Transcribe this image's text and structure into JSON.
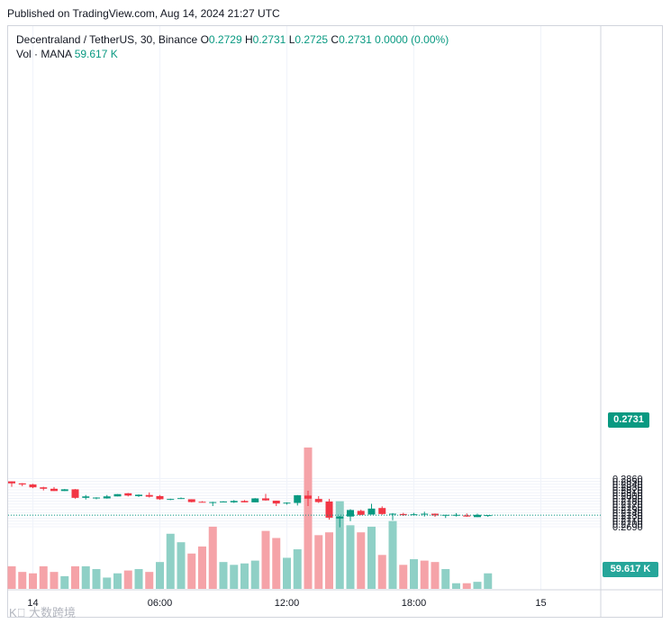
{
  "header": {
    "published": "Published on TradingView.com, Aug 14, 2024 21:27 UTC"
  },
  "legend": {
    "symbol": "Decentraland / TetherUS, 30, Binance",
    "open_label": "O",
    "open": "0.2729",
    "high_label": "H",
    "high": "0.2731",
    "low_label": "L",
    "low": "0.2725",
    "close_label": "C",
    "close": "0.2731",
    "change": "0.0000 (0.00%)",
    "vol_label": "Vol · MANA",
    "vol_value": "59.617 K"
  },
  "price_tag": "0.2731",
  "volume_tag": "59.617 K",
  "watermark": "K⃝ 大数跨境",
  "colors": {
    "up": "#089981",
    "down": "#f23645",
    "up_vol": "#8fd0c6",
    "down_vol": "#f5a3a8",
    "grid": "#f0f3fa",
    "axis_text": "#131722"
  },
  "chart_data": {
    "type": "candlestick",
    "interval": "30",
    "y_ticks": [
      "0.2690",
      "0.2700",
      "0.2710",
      "0.2720",
      "0.2730",
      "0.2740",
      "0.2750",
      "0.2760",
      "0.2770",
      "0.2780",
      "0.2790",
      "0.2800",
      "0.2810",
      "0.2820",
      "0.2830",
      "0.2840",
      "0.2850",
      "0.2860"
    ],
    "ylim": [
      0.268,
      0.2864
    ],
    "x_ticks": [
      {
        "label": "14",
        "index": 2
      },
      {
        "label": "06:00",
        "index": 14
      },
      {
        "label": "12:00",
        "index": 26
      },
      {
        "label": "18:00",
        "index": 38
      },
      {
        "label": "15",
        "index": 50
      }
    ],
    "last_price": 0.2731,
    "candles": [
      {
        "o": 0.285,
        "h": 0.285,
        "l": 0.2831,
        "c": 0.2843
      },
      {
        "o": 0.2843,
        "h": 0.2844,
        "l": 0.2833,
        "c": 0.2839
      },
      {
        "o": 0.2839,
        "h": 0.2841,
        "l": 0.2826,
        "c": 0.2829
      },
      {
        "o": 0.2829,
        "h": 0.2831,
        "l": 0.2818,
        "c": 0.2824
      },
      {
        "o": 0.2824,
        "h": 0.283,
        "l": 0.2816,
        "c": 0.2816
      },
      {
        "o": 0.2816,
        "h": 0.2823,
        "l": 0.2816,
        "c": 0.2822
      },
      {
        "o": 0.2822,
        "h": 0.2823,
        "l": 0.2789,
        "c": 0.2792
      },
      {
        "o": 0.2792,
        "h": 0.2802,
        "l": 0.2786,
        "c": 0.2797
      },
      {
        "o": 0.2791,
        "h": 0.2794,
        "l": 0.2787,
        "c": 0.2793
      },
      {
        "o": 0.279,
        "h": 0.2802,
        "l": 0.2789,
        "c": 0.2797
      },
      {
        "o": 0.2797,
        "h": 0.2805,
        "l": 0.2797,
        "c": 0.2805
      },
      {
        "o": 0.2808,
        "h": 0.2809,
        "l": 0.2797,
        "c": 0.28
      },
      {
        "o": 0.2798,
        "h": 0.2804,
        "l": 0.2795,
        "c": 0.2803
      },
      {
        "o": 0.2802,
        "h": 0.2811,
        "l": 0.2793,
        "c": 0.2796
      },
      {
        "o": 0.2798,
        "h": 0.2802,
        "l": 0.2785,
        "c": 0.2787
      },
      {
        "o": 0.2787,
        "h": 0.2789,
        "l": 0.2784,
        "c": 0.2788
      },
      {
        "o": 0.2788,
        "h": 0.2793,
        "l": 0.2788,
        "c": 0.2791
      },
      {
        "o": 0.2787,
        "h": 0.2787,
        "l": 0.2776,
        "c": 0.2777
      },
      {
        "o": 0.2778,
        "h": 0.278,
        "l": 0.2776,
        "c": 0.2776
      },
      {
        "o": 0.2776,
        "h": 0.2778,
        "l": 0.2763,
        "c": 0.2777
      },
      {
        "o": 0.2776,
        "h": 0.278,
        "l": 0.2776,
        "c": 0.2779
      },
      {
        "o": 0.2776,
        "h": 0.2784,
        "l": 0.2774,
        "c": 0.2781
      },
      {
        "o": 0.2781,
        "h": 0.2784,
        "l": 0.2776,
        "c": 0.2776
      },
      {
        "o": 0.2776,
        "h": 0.2791,
        "l": 0.2776,
        "c": 0.279
      },
      {
        "o": 0.279,
        "h": 0.2806,
        "l": 0.2782,
        "c": 0.2783
      },
      {
        "o": 0.2782,
        "h": 0.2782,
        "l": 0.2763,
        "c": 0.2772
      },
      {
        "o": 0.2772,
        "h": 0.2776,
        "l": 0.2768,
        "c": 0.2775
      },
      {
        "o": 0.2774,
        "h": 0.2802,
        "l": 0.2765,
        "c": 0.2801
      },
      {
        "o": 0.28,
        "h": 0.2817,
        "l": 0.2763,
        "c": 0.2789
      },
      {
        "o": 0.2788,
        "h": 0.2798,
        "l": 0.2774,
        "c": 0.2777
      },
      {
        "o": 0.2779,
        "h": 0.2788,
        "l": 0.2715,
        "c": 0.2722
      },
      {
        "o": 0.2719,
        "h": 0.2728,
        "l": 0.2688,
        "c": 0.2726
      },
      {
        "o": 0.2726,
        "h": 0.2752,
        "l": 0.271,
        "c": 0.2749
      },
      {
        "o": 0.2746,
        "h": 0.275,
        "l": 0.2731,
        "c": 0.2732
      },
      {
        "o": 0.2733,
        "h": 0.2771,
        "l": 0.2733,
        "c": 0.2754
      },
      {
        "o": 0.2756,
        "h": 0.2762,
        "l": 0.2732,
        "c": 0.2735
      },
      {
        "o": 0.2733,
        "h": 0.2738,
        "l": 0.2713,
        "c": 0.2736
      },
      {
        "o": 0.2735,
        "h": 0.2739,
        "l": 0.2728,
        "c": 0.2731
      },
      {
        "o": 0.2731,
        "h": 0.2739,
        "l": 0.2731,
        "c": 0.2734
      },
      {
        "o": 0.2734,
        "h": 0.2743,
        "l": 0.2726,
        "c": 0.2736
      },
      {
        "o": 0.2736,
        "h": 0.2737,
        "l": 0.2725,
        "c": 0.273
      },
      {
        "o": 0.273,
        "h": 0.2732,
        "l": 0.2721,
        "c": 0.2732
      },
      {
        "o": 0.2731,
        "h": 0.2738,
        "l": 0.2726,
        "c": 0.2732
      },
      {
        "o": 0.273,
        "h": 0.2737,
        "l": 0.2725,
        "c": 0.2726
      },
      {
        "o": 0.2724,
        "h": 0.2736,
        "l": 0.2724,
        "c": 0.2732
      },
      {
        "o": 0.2729,
        "h": 0.2731,
        "l": 0.2725,
        "c": 0.2731
      }
    ],
    "volume": [
      0.16,
      0.12,
      0.11,
      0.16,
      0.12,
      0.09,
      0.16,
      0.16,
      0.14,
      0.08,
      0.11,
      0.13,
      0.14,
      0.12,
      0.19,
      0.39,
      0.33,
      0.25,
      0.3,
      0.44,
      0.19,
      0.17,
      0.18,
      0.2,
      0.41,
      0.36,
      0.22,
      0.28,
      1.0,
      0.38,
      0.4,
      0.62,
      0.45,
      0.4,
      0.44,
      0.24,
      0.48,
      0.17,
      0.21,
      0.2,
      0.19,
      0.14,
      0.04,
      0.04,
      0.05,
      0.11
    ],
    "volume_dir": [
      0,
      0,
      0,
      0,
      0,
      1,
      0,
      1,
      1,
      1,
      1,
      0,
      1,
      0,
      1,
      1,
      1,
      0,
      0,
      0,
      1,
      1,
      1,
      1,
      0,
      0,
      1,
      1,
      0,
      0,
      0,
      1,
      1,
      0,
      1,
      0,
      1,
      0,
      1,
      0,
      0,
      1,
      1,
      0,
      1,
      1
    ]
  }
}
